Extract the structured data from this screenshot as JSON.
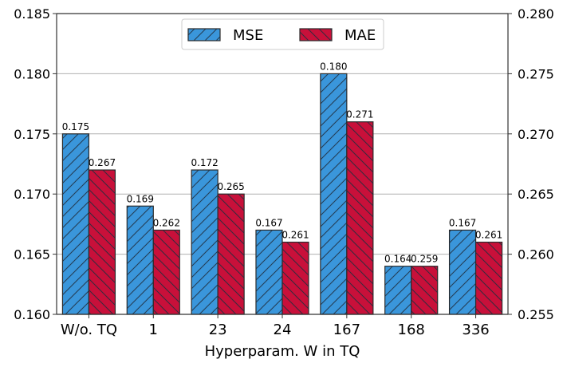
{
  "chart_data": {
    "type": "bar",
    "xlabel": "Hyperparam. W in TQ",
    "categories": [
      "W/o. TQ",
      "1",
      "23",
      "24",
      "167",
      "168",
      "336"
    ],
    "series": [
      {
        "name": "MSE",
        "axis": "left",
        "color": "#3a96db",
        "hatch": "/",
        "values": [
          0.175,
          0.169,
          0.172,
          0.167,
          0.18,
          0.164,
          0.167
        ],
        "labels": [
          "0.175",
          "0.169",
          "0.172",
          "0.167",
          "0.180",
          "0.164",
          "0.167"
        ]
      },
      {
        "name": "MAE",
        "axis": "right",
        "color": "#c8103a",
        "hatch": "\\",
        "values": [
          0.267,
          0.262,
          0.265,
          0.261,
          0.271,
          0.259,
          0.261
        ],
        "labels": [
          "0.267",
          "0.262",
          "0.265",
          "0.261",
          "0.271",
          "0.259",
          "0.261"
        ]
      }
    ],
    "left_axis": {
      "ylim": [
        0.16,
        0.185
      ],
      "ticks": [
        "0.160",
        "0.165",
        "0.170",
        "0.175",
        "0.180",
        "0.185"
      ]
    },
    "right_axis": {
      "ylim": [
        0.255,
        0.28
      ],
      "ticks": [
        "0.255",
        "0.260",
        "0.265",
        "0.270",
        "0.275",
        "0.280"
      ]
    },
    "grid": "horizontal",
    "legend": "top-center"
  }
}
